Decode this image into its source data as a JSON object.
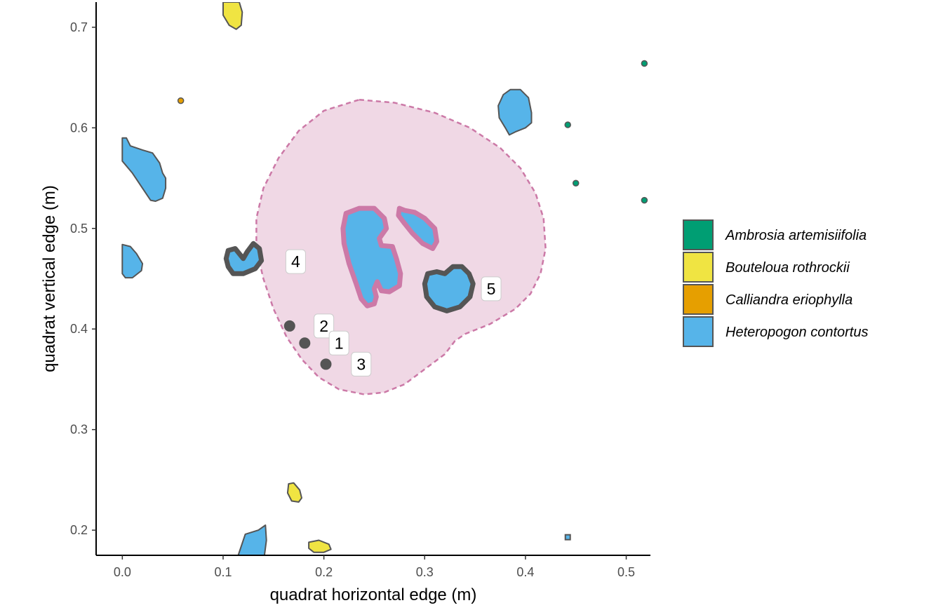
{
  "chart_data": {
    "type": "scatter",
    "title": "",
    "xlabel": "quadrat horizontal edge (m)",
    "ylabel": "quadrat vertical edge (m)",
    "xlim": [
      -0.026,
      0.524
    ],
    "ylim": [
      0.175,
      0.725
    ],
    "x_ticks": [
      0.0,
      0.1,
      0.2,
      0.3,
      0.4,
      0.5
    ],
    "y_ticks": [
      0.2,
      0.3,
      0.4,
      0.5,
      0.6,
      0.7
    ],
    "x_tick_labels": [
      "0.0",
      "0.1",
      "0.2",
      "0.3",
      "0.4",
      "0.5"
    ],
    "y_tick_labels": [
      "0.2",
      "0.3",
      "0.4",
      "0.5",
      "0.6",
      "0.7"
    ],
    "grid": false,
    "legend_position": "right",
    "species": [
      {
        "name": "Ambrosia artemisiifolia",
        "color": "#009E73"
      },
      {
        "name": "Bouteloua rothrockii",
        "color": "#F0E442"
      },
      {
        "name": "Calliandra eriophylla",
        "color": "#E69F00"
      },
      {
        "name": "Heteropogon contortus",
        "color": "#56B4E9"
      }
    ],
    "zone": {
      "fill": "#F0D8E5",
      "stroke": "#CC79A7",
      "polygon": [
        [
          0.235,
          0.628
        ],
        [
          0.27,
          0.625
        ],
        [
          0.31,
          0.615
        ],
        [
          0.345,
          0.6
        ],
        [
          0.375,
          0.58
        ],
        [
          0.395,
          0.56
        ],
        [
          0.41,
          0.535
        ],
        [
          0.418,
          0.51
        ],
        [
          0.42,
          0.48
        ],
        [
          0.415,
          0.455
        ],
        [
          0.405,
          0.435
        ],
        [
          0.39,
          0.42
        ],
        [
          0.365,
          0.405
        ],
        [
          0.34,
          0.395
        ],
        [
          0.33,
          0.388
        ],
        [
          0.32,
          0.375
        ],
        [
          0.3,
          0.36
        ],
        [
          0.28,
          0.345
        ],
        [
          0.26,
          0.337
        ],
        [
          0.24,
          0.335
        ],
        [
          0.215,
          0.34
        ],
        [
          0.195,
          0.352
        ],
        [
          0.178,
          0.37
        ],
        [
          0.163,
          0.392
        ],
        [
          0.15,
          0.42
        ],
        [
          0.14,
          0.45
        ],
        [
          0.133,
          0.48
        ],
        [
          0.133,
          0.51
        ],
        [
          0.14,
          0.54
        ],
        [
          0.155,
          0.57
        ],
        [
          0.175,
          0.597
        ],
        [
          0.2,
          0.617
        ]
      ]
    },
    "plants": [
      {
        "species": "Heteropogon contortus",
        "outline": "zone",
        "polygon": [
          [
            0.219,
            0.5
          ],
          [
            0.222,
            0.515
          ],
          [
            0.235,
            0.52
          ],
          [
            0.25,
            0.52
          ],
          [
            0.26,
            0.51
          ],
          [
            0.262,
            0.5
          ],
          [
            0.255,
            0.49
          ],
          [
            0.257,
            0.483
          ],
          [
            0.268,
            0.482
          ],
          [
            0.272,
            0.47
          ],
          [
            0.276,
            0.455
          ],
          [
            0.275,
            0.443
          ],
          [
            0.265,
            0.437
          ],
          [
            0.257,
            0.438
          ],
          [
            0.253,
            0.447
          ],
          [
            0.25,
            0.44
          ],
          [
            0.252,
            0.432
          ],
          [
            0.25,
            0.425
          ],
          [
            0.243,
            0.423
          ],
          [
            0.237,
            0.43
          ],
          [
            0.232,
            0.445
          ],
          [
            0.225,
            0.465
          ],
          [
            0.22,
            0.485
          ]
        ]
      },
      {
        "species": "Heteropogon contortus",
        "outline": "zone",
        "polygon": [
          [
            0.275,
            0.52
          ],
          [
            0.28,
            0.518
          ],
          [
            0.29,
            0.516
          ],
          [
            0.3,
            0.51
          ],
          [
            0.31,
            0.5
          ],
          [
            0.312,
            0.487
          ],
          [
            0.308,
            0.48
          ],
          [
            0.298,
            0.485
          ],
          [
            0.288,
            0.495
          ],
          [
            0.28,
            0.505
          ],
          [
            0.274,
            0.513
          ]
        ]
      },
      {
        "species": "Heteropogon contortus",
        "outline": "selected",
        "polygon": [
          [
            0.32,
            0.455
          ],
          [
            0.328,
            0.462
          ],
          [
            0.337,
            0.462
          ],
          [
            0.344,
            0.455
          ],
          [
            0.348,
            0.445
          ],
          [
            0.345,
            0.432
          ],
          [
            0.335,
            0.422
          ],
          [
            0.322,
            0.418
          ],
          [
            0.31,
            0.422
          ],
          [
            0.302,
            0.432
          ],
          [
            0.3,
            0.445
          ],
          [
            0.303,
            0.455
          ],
          [
            0.312,
            0.457
          ]
        ]
      },
      {
        "species": "Heteropogon contortus",
        "outline": "selected",
        "polygon": [
          [
            0.105,
            0.478
          ],
          [
            0.112,
            0.48
          ],
          [
            0.12,
            0.47
          ],
          [
            0.124,
            0.477
          ],
          [
            0.13,
            0.485
          ],
          [
            0.136,
            0.48
          ],
          [
            0.138,
            0.468
          ],
          [
            0.132,
            0.46
          ],
          [
            0.12,
            0.455
          ],
          [
            0.11,
            0.455
          ],
          [
            0.105,
            0.462
          ],
          [
            0.103,
            0.47
          ]
        ]
      },
      {
        "species": "Heteropogon contortus",
        "outline": "normal",
        "polygon": [
          [
            0.0,
            0.59
          ],
          [
            0.004,
            0.59
          ],
          [
            0.008,
            0.582
          ],
          [
            0.02,
            0.578
          ],
          [
            0.03,
            0.575
          ],
          [
            0.037,
            0.565
          ],
          [
            0.04,
            0.555
          ],
          [
            0.043,
            0.55
          ],
          [
            0.043,
            0.54
          ],
          [
            0.04,
            0.53
          ],
          [
            0.033,
            0.527
          ],
          [
            0.028,
            0.528
          ],
          [
            0.02,
            0.54
          ],
          [
            0.01,
            0.555
          ],
          [
            0.0,
            0.567
          ]
        ]
      },
      {
        "species": "Heteropogon contortus",
        "outline": "normal",
        "polygon": [
          [
            0.0,
            0.484
          ],
          [
            0.008,
            0.482
          ],
          [
            0.014,
            0.475
          ],
          [
            0.02,
            0.465
          ],
          [
            0.019,
            0.458
          ],
          [
            0.01,
            0.451
          ],
          [
            0.003,
            0.451
          ],
          [
            0.0,
            0.455
          ]
        ]
      },
      {
        "species": "Heteropogon contortus",
        "outline": "normal",
        "polygon": [
          [
            0.385,
            0.638
          ],
          [
            0.395,
            0.638
          ],
          [
            0.403,
            0.63
          ],
          [
            0.406,
            0.615
          ],
          [
            0.406,
            0.605
          ],
          [
            0.4,
            0.6
          ],
          [
            0.39,
            0.596
          ],
          [
            0.384,
            0.593
          ],
          [
            0.38,
            0.6
          ],
          [
            0.374,
            0.61
          ],
          [
            0.373,
            0.622
          ],
          [
            0.378,
            0.633
          ]
        ]
      },
      {
        "species": "Heteropogon contortus",
        "outline": "normal",
        "polygon": [
          [
            0.115,
            0.175
          ],
          [
            0.122,
            0.196
          ],
          [
            0.135,
            0.2
          ],
          [
            0.142,
            0.205
          ],
          [
            0.143,
            0.19
          ],
          [
            0.141,
            0.175
          ]
        ]
      },
      {
        "species": "Bouteloua rothrockii",
        "outline": "normal",
        "polygon": [
          [
            0.1,
            0.725
          ],
          [
            0.116,
            0.725
          ],
          [
            0.119,
            0.715
          ],
          [
            0.118,
            0.702
          ],
          [
            0.113,
            0.698
          ],
          [
            0.106,
            0.702
          ],
          [
            0.1,
            0.712
          ]
        ]
      },
      {
        "species": "Bouteloua rothrockii",
        "outline": "normal",
        "polygon": [
          [
            0.165,
            0.246
          ],
          [
            0.17,
            0.247
          ],
          [
            0.176,
            0.24
          ],
          [
            0.178,
            0.232
          ],
          [
            0.175,
            0.228
          ],
          [
            0.168,
            0.229
          ],
          [
            0.164,
            0.237
          ]
        ]
      },
      {
        "species": "Bouteloua rothrockii",
        "outline": "normal",
        "polygon": [
          [
            0.185,
            0.188
          ],
          [
            0.195,
            0.19
          ],
          [
            0.205,
            0.186
          ],
          [
            0.207,
            0.181
          ],
          [
            0.2,
            0.178
          ],
          [
            0.19,
            0.178
          ],
          [
            0.185,
            0.182
          ]
        ]
      }
    ],
    "points": [
      {
        "species": "Ambrosia artemisiifolia",
        "x": 0.518,
        "y": 0.664
      },
      {
        "species": "Ambrosia artemisiifolia",
        "x": 0.442,
        "y": 0.603
      },
      {
        "species": "Ambrosia artemisiifolia",
        "x": 0.45,
        "y": 0.545
      },
      {
        "species": "Ambrosia artemisiifolia",
        "x": 0.518,
        "y": 0.528
      },
      {
        "species": "Calliandra eriophylla",
        "x": 0.058,
        "y": 0.627
      },
      {
        "species": "Heteropogon contortus",
        "x": 0.442,
        "y": 0.193,
        "shape": "square"
      }
    ],
    "selected_points": [
      {
        "x": 0.166,
        "y": 0.403
      },
      {
        "x": 0.181,
        "y": 0.386
      },
      {
        "x": 0.202,
        "y": 0.365
      }
    ],
    "labels": [
      {
        "text": "4",
        "x": 0.172,
        "y": 0.467
      },
      {
        "text": "2",
        "x": 0.2,
        "y": 0.403
      },
      {
        "text": "1",
        "x": 0.215,
        "y": 0.386
      },
      {
        "text": "3",
        "x": 0.237,
        "y": 0.365
      },
      {
        "text": "5",
        "x": 0.366,
        "y": 0.44
      }
    ]
  }
}
